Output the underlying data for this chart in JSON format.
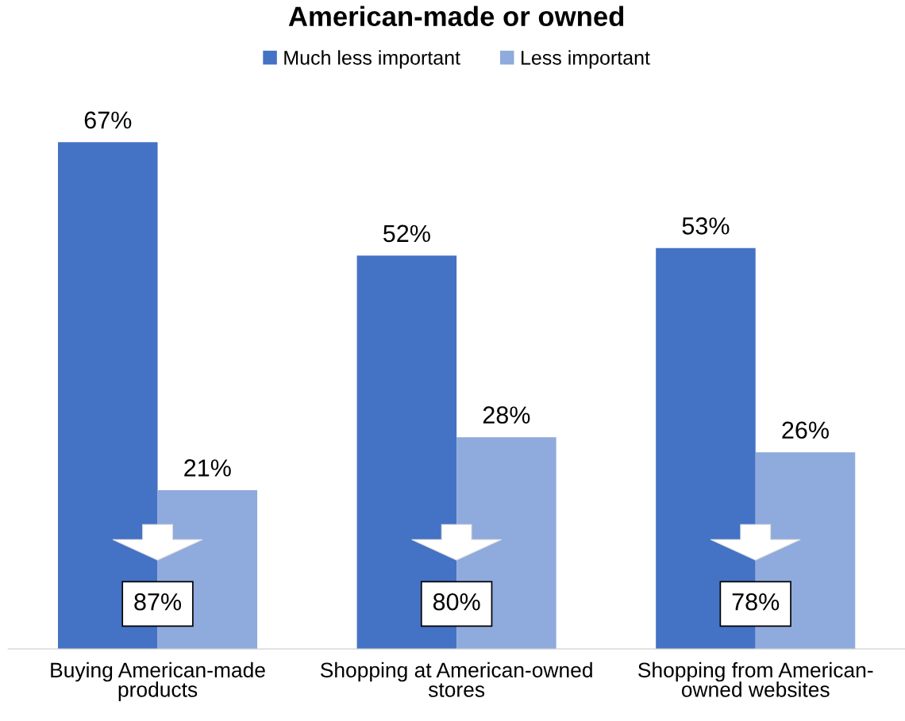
{
  "chart_data": {
    "type": "bar",
    "title": "American-made or owned",
    "categories": [
      "Buying American-made products",
      "Shopping at American-owned stores",
      "Shopping from American-owned websites"
    ],
    "series": [
      {
        "name": "Much less important",
        "color": "#4472c4",
        "values": [
          67,
          52,
          53
        ],
        "value_labels": [
          "67%",
          "52%",
          "53%"
        ]
      },
      {
        "name": "Less important",
        "color": "#8faadc",
        "values": [
          21,
          28,
          26
        ],
        "value_labels": [
          "21%",
          "28%",
          "26%"
        ]
      }
    ],
    "legend": "top",
    "grid": false,
    "annotations": [
      "87%",
      "80%",
      "78%"
    ]
  }
}
